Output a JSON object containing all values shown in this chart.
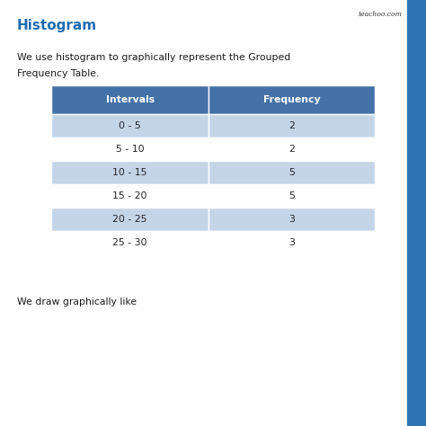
{
  "title": "Histogram",
  "title_color": "#1F6BB0",
  "title_fontsize": 11,
  "body_text1": "We use histogram to graphically represent the Grouped",
  "body_text2": "Frequency Table.",
  "bottom_text": "We draw graphically like",
  "watermark": "teachoo.com",
  "table_header": [
    "Intervals",
    "Frequency"
  ],
  "table_rows": [
    [
      "0 - 5",
      "2"
    ],
    [
      "5 - 10",
      "2"
    ],
    [
      "10 - 15",
      "5"
    ],
    [
      "15 - 20",
      "5"
    ],
    [
      "20 - 25",
      "3"
    ],
    [
      "25 - 30",
      "3"
    ]
  ],
  "header_bg": "#4472A8",
  "header_text_color": "#ffffff",
  "row_bg_odd": "#C5D5E8",
  "row_bg_even": "#ffffff",
  "cell_text_color": "#222222",
  "background_color": "#ffffff",
  "right_bar_color": "#2E74B5",
  "fig_width": 4.74,
  "fig_height": 4.74,
  "dpi": 100
}
